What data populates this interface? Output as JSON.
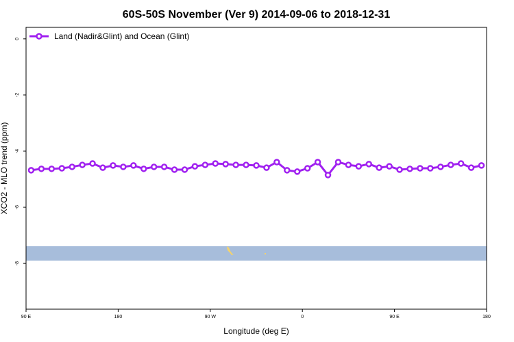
{
  "chart_data": {
    "type": "line",
    "title": "60S-50S November (Ver 9)   2014-09-06 to 2018-12-31",
    "xlabel": "Longitude (deg E)",
    "ylabel": "XCO2 - MLO trend (ppm)",
    "xlim": [
      90,
      540
    ],
    "ylim": [
      -9.63,
      0.41
    ],
    "xticks": [
      {
        "value": 90,
        "label": "90 E"
      },
      {
        "value": 180,
        "label": "180"
      },
      {
        "value": 270,
        "label": "90 W"
      },
      {
        "value": 360,
        "label": "0"
      },
      {
        "value": 450,
        "label": "90 E"
      },
      {
        "value": 540,
        "label": "180"
      }
    ],
    "yticks": [
      0,
      -2,
      -4,
      -6,
      -8
    ],
    "legend": "top-left",
    "series": [
      {
        "name": "Land (Nadir&Glint) and Ocean (Glint)",
        "color": "#a020f0",
        "x": [
          95,
          105,
          115,
          125,
          135,
          145,
          155,
          165,
          175,
          185,
          195,
          205,
          215,
          225,
          235,
          245,
          255,
          265,
          275,
          285,
          295,
          305,
          315,
          325,
          335,
          345,
          355,
          365,
          375,
          385,
          395,
          405,
          415,
          425,
          435,
          445,
          455,
          465,
          475,
          485,
          495,
          505,
          515,
          525,
          535
        ],
        "values": [
          -4.68,
          -4.63,
          -4.63,
          -4.61,
          -4.56,
          -4.49,
          -4.44,
          -4.59,
          -4.51,
          -4.56,
          -4.51,
          -4.63,
          -4.56,
          -4.56,
          -4.66,
          -4.66,
          -4.54,
          -4.49,
          -4.44,
          -4.46,
          -4.49,
          -4.49,
          -4.51,
          -4.59,
          -4.39,
          -4.68,
          -4.73,
          -4.61,
          -4.39,
          -4.85,
          -4.39,
          -4.49,
          -4.54,
          -4.46,
          -4.59,
          -4.54,
          -4.66,
          -4.63,
          -4.61,
          -4.61,
          -4.56,
          -4.49,
          -4.44,
          -4.59,
          -4.51
        ]
      }
    ]
  }
}
